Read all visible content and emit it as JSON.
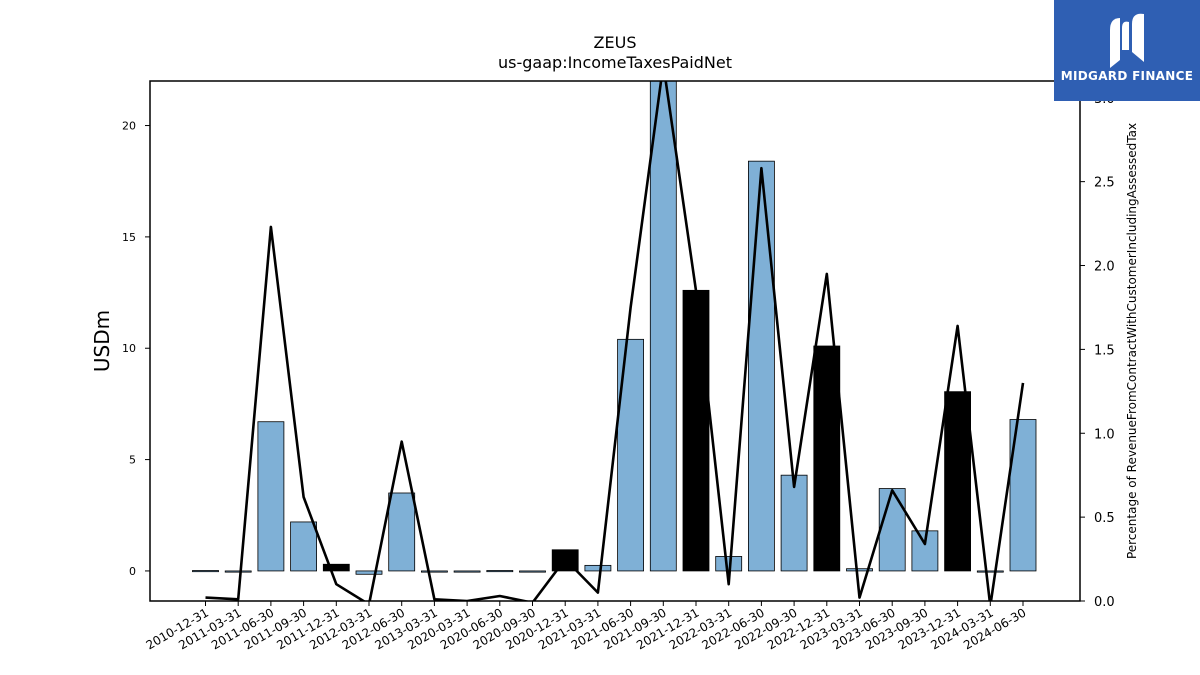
{
  "chart_data": {
    "type": "bar",
    "title": "ZEUS",
    "subtitle": "us-gaap:IncomeTaxesPaidNet",
    "ylabel": "USDm",
    "y2label": "Percentage of RevenueFromContractWithCustomerIncludingAssessedTax",
    "ylim": [
      -1.35,
      22
    ],
    "y2lim": [
      0.0,
      3.1
    ],
    "yticks": [
      0,
      5,
      10,
      15,
      20
    ],
    "y2ticks": [
      "0.0",
      "0.5",
      "1.0",
      "1.5",
      "2.0",
      "2.5",
      "3.0"
    ],
    "categories": [
      "2010-12-31",
      "2011-03-31",
      "2011-06-30",
      "2011-09-30",
      "2011-12-31",
      "2012-03-31",
      "2012-06-30",
      "2013-03-31",
      "2020-03-31",
      "2020-06-30",
      "2020-09-30",
      "2020-12-31",
      "2021-03-31",
      "2021-06-30",
      "2021-09-30",
      "2021-12-31",
      "2022-03-31",
      "2022-06-30",
      "2022-09-30",
      "2022-12-31",
      "2023-03-31",
      "2023-06-30",
      "2023-09-30",
      "2023-12-31",
      "2024-03-31",
      "2024-06-30"
    ],
    "series": [
      {
        "values": [
          0.02,
          -0.02,
          6.7,
          2.2,
          0.3,
          -0.15,
          3.5,
          0.0,
          -0.05,
          0.02,
          -0.05,
          0.95,
          0.25,
          10.4,
          22.2,
          12.6,
          0.65,
          18.4,
          4.3,
          10.1,
          0.1,
          3.7,
          1.8,
          8.05,
          -0.05,
          6.8
        ],
        "colors": [
          "#7fb0d6",
          "#7fb0d6",
          "#7fb0d6",
          "#7fb0d6",
          "#000000",
          "#7fb0d6",
          "#7fb0d6",
          "#7fb0d6",
          "#7fb0d6",
          "#7fb0d6",
          "#7fb0d6",
          "#000000",
          "#7fb0d6",
          "#7fb0d6",
          "#7fb0d6",
          "#000000",
          "#7fb0d6",
          "#7fb0d6",
          "#7fb0d6",
          "#000000",
          "#7fb0d6",
          "#7fb0d6",
          "#7fb0d6",
          "#000000",
          "#7fb0d6",
          "#7fb0d6"
        ]
      },
      {
        "axis": "right",
        "type": "line",
        "values": [
          0.02,
          0.01,
          2.23,
          0.62,
          0.1,
          -0.02,
          0.95,
          0.01,
          0.0,
          0.03,
          -0.01,
          0.25,
          0.05,
          1.75,
          3.2,
          1.85,
          0.1,
          2.58,
          0.68,
          1.95,
          0.02,
          0.66,
          0.34,
          1.64,
          -0.03,
          1.3
        ]
      }
    ]
  },
  "logo": {
    "name": "MIDGARD FINANCE",
    "accent": "#2f5fb3"
  }
}
